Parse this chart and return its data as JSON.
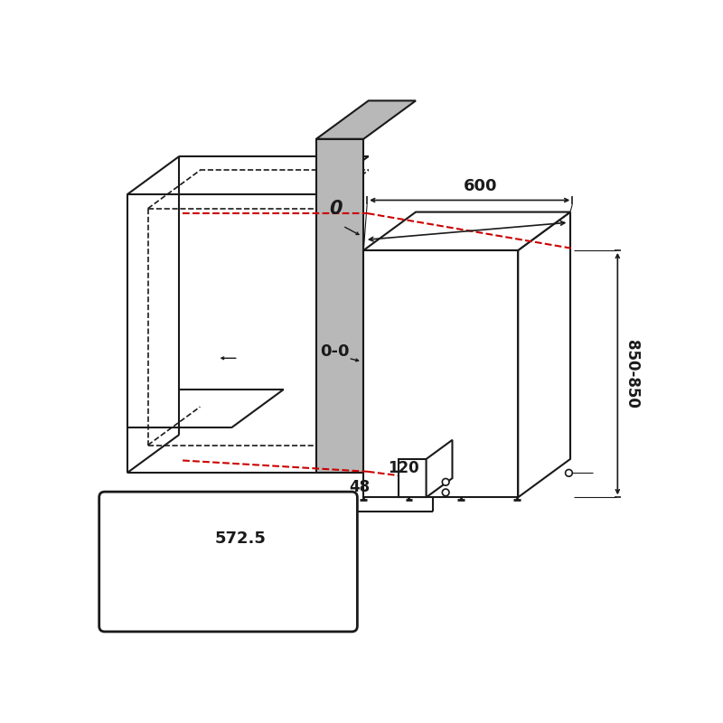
{
  "bg_color": "#ffffff",
  "line_color": "#1a1a1a",
  "gray_fill": "#b8b8b8",
  "red_dashed": "#cc0000",
  "dim_600": "600",
  "dim_850": "850-850",
  "dim_120": "120",
  "dim_48": "48",
  "dim_572": "572.5",
  "label_0": "0",
  "label_00": "0-0"
}
